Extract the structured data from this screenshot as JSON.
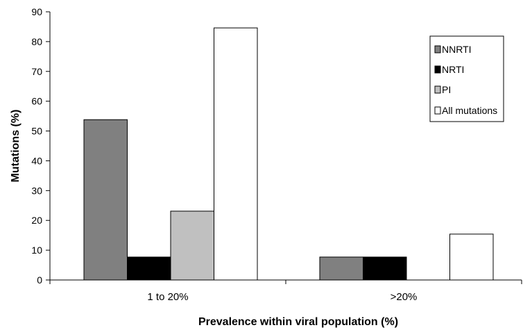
{
  "chart_data": {
    "type": "bar",
    "title": "",
    "xlabel": "Prevalence within viral population (%)",
    "ylabel": "Mutations (%)",
    "ylim": [
      0,
      90
    ],
    "yticks": [
      0,
      10,
      20,
      30,
      40,
      50,
      60,
      70,
      80,
      90
    ],
    "categories": [
      "1 to 20%",
      ">20%"
    ],
    "series": [
      {
        "name": "NNRTI",
        "color": "#808080",
        "values": [
          53.8,
          7.7
        ]
      },
      {
        "name": "NRTI",
        "color": "#000000",
        "values": [
          7.7,
          7.7
        ]
      },
      {
        "name": "PI",
        "color": "#c0c0c0",
        "values": [
          23.1,
          0
        ]
      },
      {
        "name": "All mutations",
        "color": "#ffffff",
        "values": [
          84.6,
          15.4
        ]
      }
    ],
    "legend_position": "top-right",
    "grid": false
  }
}
